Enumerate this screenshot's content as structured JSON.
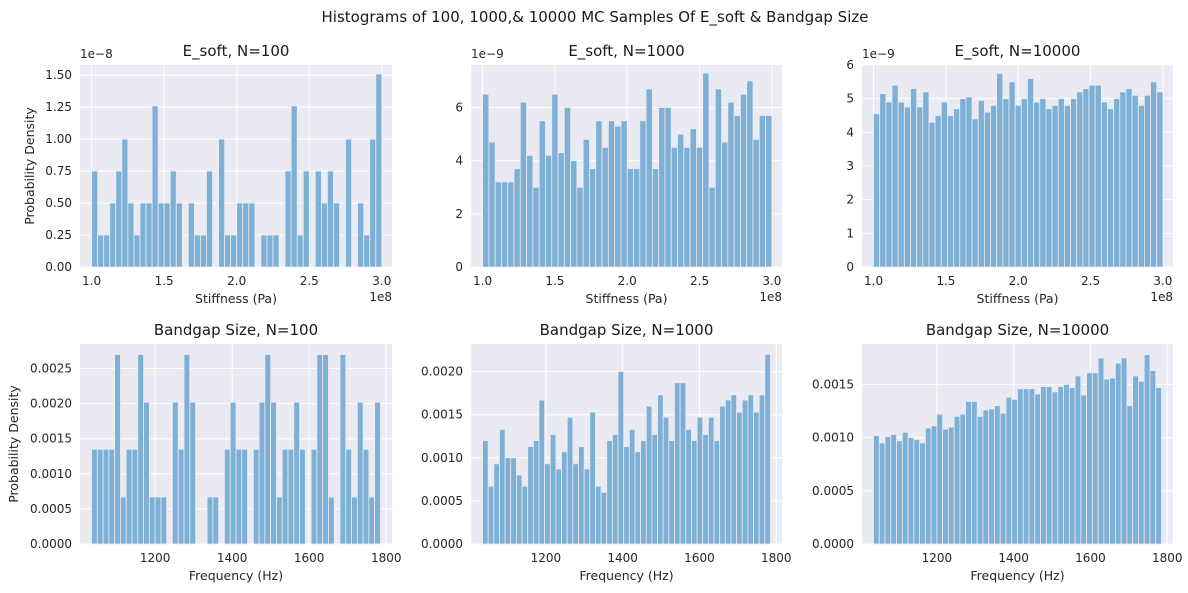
{
  "figure": {
    "title": "Histograms of 100, 1000,& 10000 MC Samples Of E_soft & Bandgap Size",
    "bar_color": "#7eb0d5",
    "panel_background": "#eaeaf2",
    "grid_color": "#ffffff"
  },
  "chart_data": [
    {
      "type": "bar",
      "title": "E_soft, N=100",
      "xlabel": "Stiffness (Pa)",
      "ylabel": "Probability Density",
      "x_range": [
        100000000.0,
        300000000.0
      ],
      "xlim": [
        92000000.0,
        307000000.0
      ],
      "ylim": [
        0,
        1.58e-08
      ],
      "xticks": [
        100000000.0,
        150000000.0,
        200000000.0,
        250000000.0,
        300000000.0
      ],
      "xtick_labels": [
        "1.0",
        "1.5",
        "2.0",
        "2.5",
        "3.0"
      ],
      "x_offset": "1e8",
      "yticks": [
        0,
        2.5e-09,
        5e-09,
        7.5e-09,
        1e-08,
        1.25e-08,
        1.5e-08
      ],
      "ytick_labels": [
        "0.00",
        "0.25",
        "0.50",
        "0.75",
        "1.00",
        "1.25",
        "1.50"
      ],
      "y_offset": "1e−8",
      "values": [
        7.5e-09,
        2.5e-09,
        2.5e-09,
        5e-09,
        7.5e-09,
        1e-08,
        5e-09,
        2.5e-09,
        5e-09,
        5e-09,
        1.26e-08,
        5e-09,
        5e-09,
        7.5e-09,
        5e-09,
        0,
        5e-09,
        2.5e-09,
        2.5e-09,
        7.5e-09,
        0,
        1e-08,
        2.5e-09,
        2.5e-09,
        5e-09,
        5e-09,
        5e-09,
        0,
        2.5e-09,
        2.5e-09,
        2.5e-09,
        0,
        7.5e-09,
        1.26e-08,
        2.5e-09,
        7.5e-09,
        0,
        7.5e-09,
        5e-09,
        7.5e-09,
        5e-09,
        0,
        1e-08,
        0,
        5e-09,
        2.5e-09,
        1e-08,
        1.51e-08
      ]
    },
    {
      "type": "bar",
      "title": "E_soft, N=1000",
      "xlabel": "Stiffness (Pa)",
      "ylabel": "",
      "x_range": [
        100000000.0,
        300000000.0
      ],
      "xlim": [
        92000000.0,
        307000000.0
      ],
      "ylim": [
        0,
        7.6e-09
      ],
      "xticks": [
        100000000.0,
        150000000.0,
        200000000.0,
        250000000.0,
        300000000.0
      ],
      "xtick_labels": [
        "1.0",
        "1.5",
        "2.0",
        "2.5",
        "3.0"
      ],
      "x_offset": "1e8",
      "yticks": [
        0,
        2e-09,
        4e-09,
        6e-09
      ],
      "ytick_labels": [
        "0",
        "2",
        "4",
        "6"
      ],
      "y_offset": "1e−9",
      "values": [
        6.5e-09,
        4.7e-09,
        3.2e-09,
        3.2e-09,
        3.2e-09,
        3.7e-09,
        6.2e-09,
        4.2e-09,
        3e-09,
        5.5e-09,
        4.2e-09,
        6.5e-09,
        4.3e-09,
        6e-09,
        4e-09,
        3e-09,
        4.8e-09,
        3.7e-09,
        5.5e-09,
        4.5e-09,
        5.5e-09,
        5.3e-09,
        5.5e-09,
        3.7e-09,
        3.7e-09,
        5.5e-09,
        6.7e-09,
        3.7e-09,
        6e-09,
        6e-09,
        4.5e-09,
        5e-09,
        4.5e-09,
        5.2e-09,
        4.5e-09,
        7.3e-09,
        3e-09,
        6.7e-09,
        4.7e-09,
        6.2e-09,
        5.7e-09,
        6.5e-09,
        7e-09,
        4.8e-09,
        5.7e-09,
        5.7e-09
      ]
    },
    {
      "type": "bar",
      "title": "E_soft, N=10000",
      "xlabel": "Stiffness (Pa)",
      "ylabel": "",
      "x_range": [
        100000000.0,
        300000000.0
      ],
      "xlim": [
        92000000.0,
        307000000.0
      ],
      "ylim": [
        0,
        6e-09
      ],
      "xticks": [
        100000000.0,
        150000000.0,
        200000000.0,
        250000000.0,
        300000000.0
      ],
      "xtick_labels": [
        "1.0",
        "1.5",
        "2.0",
        "2.5",
        "3.0"
      ],
      "x_offset": "1e8",
      "yticks": [
        0,
        1e-09,
        2e-09,
        3e-09,
        4e-09,
        5e-09,
        6e-09
      ],
      "ytick_labels": [
        "0",
        "1",
        "2",
        "3",
        "4",
        "5",
        "6"
      ],
      "y_offset": "1e−9",
      "values": [
        4.55e-09,
        5.15e-09,
        4.9e-09,
        5.4e-09,
        4.9e-09,
        4.75e-09,
        5.3e-09,
        4.75e-09,
        5.2e-09,
        4.3e-09,
        4.5e-09,
        4.9e-09,
        4.5e-09,
        4.7e-09,
        5e-09,
        5.05e-09,
        4.4e-09,
        4.95e-09,
        4.6e-09,
        4.8e-09,
        5.75e-09,
        5e-09,
        5.5e-09,
        4.8e-09,
        5e-09,
        5.6e-09,
        4.9e-09,
        5e-09,
        4.7e-09,
        4.8e-09,
        5e-09,
        4.8e-09,
        5e-09,
        5.2e-09,
        5.3e-09,
        5.4e-09,
        5.4e-09,
        4.9e-09,
        4.7e-09,
        5e-09,
        5.2e-09,
        5.3e-09,
        5.1e-09,
        4.8e-09,
        5.1e-09,
        5.5e-09,
        5.2e-09
      ]
    },
    {
      "type": "bar",
      "title": "Bandgap Size, N=100",
      "xlabel": "Frequency (Hz)",
      "ylabel": "Probability Density",
      "x_range": [
        1035,
        1785
      ],
      "xlim": [
        1005,
        1815
      ],
      "ylim": [
        0,
        0.00285
      ],
      "xticks": [
        1200,
        1400,
        1600,
        1800
      ],
      "xtick_labels": [
        "1200",
        "1400",
        "1600",
        "1800"
      ],
      "yticks": [
        0,
        0.0005,
        0.001,
        0.0015,
        0.002,
        0.0025
      ],
      "ytick_labels": [
        "0.0000",
        "0.0005",
        "0.0010",
        "0.0015",
        "0.0020",
        "0.0025"
      ],
      "values": [
        0.00135,
        0.00135,
        0.00135,
        0.00135,
        0.0027,
        0.00067,
        0.00135,
        0.00135,
        0.0027,
        0.00202,
        0.00067,
        0.00067,
        0.00067,
        0,
        0.00202,
        0.00135,
        0.0027,
        0.00202,
        0,
        0,
        0.00067,
        0.00067,
        0,
        0.00135,
        0.00202,
        0.00135,
        0.00135,
        0,
        0.00135,
        0.00202,
        0.0027,
        0.00202,
        0.00067,
        0.00135,
        0.00135,
        0.00202,
        0.00135,
        0,
        0.00135,
        0.0027,
        0.0027,
        0.00067,
        0,
        0.0027,
        0.00135,
        0.00067,
        0.00202,
        0.00135,
        0.00067,
        0.00202
      ]
    },
    {
      "type": "bar",
      "title": "Bandgap Size, N=1000",
      "xlabel": "Frequency (Hz)",
      "ylabel": "",
      "x_range": [
        1035,
        1785
      ],
      "xlim": [
        1005,
        1815
      ],
      "ylim": [
        0,
        0.00232
      ],
      "xticks": [
        1200,
        1400,
        1600,
        1800
      ],
      "xtick_labels": [
        "1200",
        "1400",
        "1600",
        "1800"
      ],
      "yticks": [
        0,
        0.0005,
        0.001,
        0.0015,
        0.002
      ],
      "ytick_labels": [
        "0.0000",
        "0.0005",
        "0.0010",
        "0.0015",
        "0.0020"
      ],
      "values": [
        0.0012,
        0.00067,
        0.00093,
        0.00133,
        0.001,
        0.001,
        0.0008,
        0.00067,
        0.00113,
        0.0012,
        0.00167,
        0.00093,
        0.00127,
        0.00087,
        0.00107,
        0.00147,
        0.00093,
        0.00113,
        0.00087,
        0.00153,
        0.00067,
        0.0006,
        0.0012,
        0.00127,
        0.002,
        0.00113,
        0.00133,
        0.00107,
        0.0012,
        0.0016,
        0.00127,
        0.00173,
        0.00147,
        0.0012,
        0.00187,
        0.00187,
        0.00133,
        0.0012,
        0.00147,
        0.00127,
        0.00147,
        0.0012,
        0.0016,
        0.00167,
        0.00173,
        0.00153,
        0.00167,
        0.00173,
        0.00153,
        0.00173,
        0.0022
      ]
    },
    {
      "type": "bar",
      "title": "Bandgap Size, N=10000",
      "xlabel": "Frequency (Hz)",
      "ylabel": "",
      "x_range": [
        1035,
        1785
      ],
      "xlim": [
        1005,
        1815
      ],
      "ylim": [
        0,
        0.00188
      ],
      "xticks": [
        1200,
        1400,
        1600,
        1800
      ],
      "xtick_labels": [
        "1200",
        "1400",
        "1600",
        "1800"
      ],
      "yticks": [
        0,
        0.0005,
        0.001,
        0.0015
      ],
      "ytick_labels": [
        "0.0000",
        "0.0005",
        "0.0010",
        "0.0015"
      ],
      "values": [
        0.00102,
        0.00095,
        0.00101,
        0.00103,
        0.00097,
        0.00105,
        0.001,
        0.00098,
        0.00095,
        0.00109,
        0.00111,
        0.00122,
        0.00108,
        0.0011,
        0.0012,
        0.00122,
        0.00134,
        0.00134,
        0.0012,
        0.00126,
        0.00127,
        0.0013,
        0.00123,
        0.00138,
        0.00136,
        0.00146,
        0.00146,
        0.00146,
        0.00141,
        0.00148,
        0.00148,
        0.00143,
        0.00148,
        0.0015,
        0.00147,
        0.00158,
        0.0014,
        0.00161,
        0.00161,
        0.00175,
        0.00155,
        0.00156,
        0.0017,
        0.00175,
        0.0013,
        0.00158,
        0.00153,
        0.00178,
        0.00163,
        0.00147
      ]
    }
  ]
}
